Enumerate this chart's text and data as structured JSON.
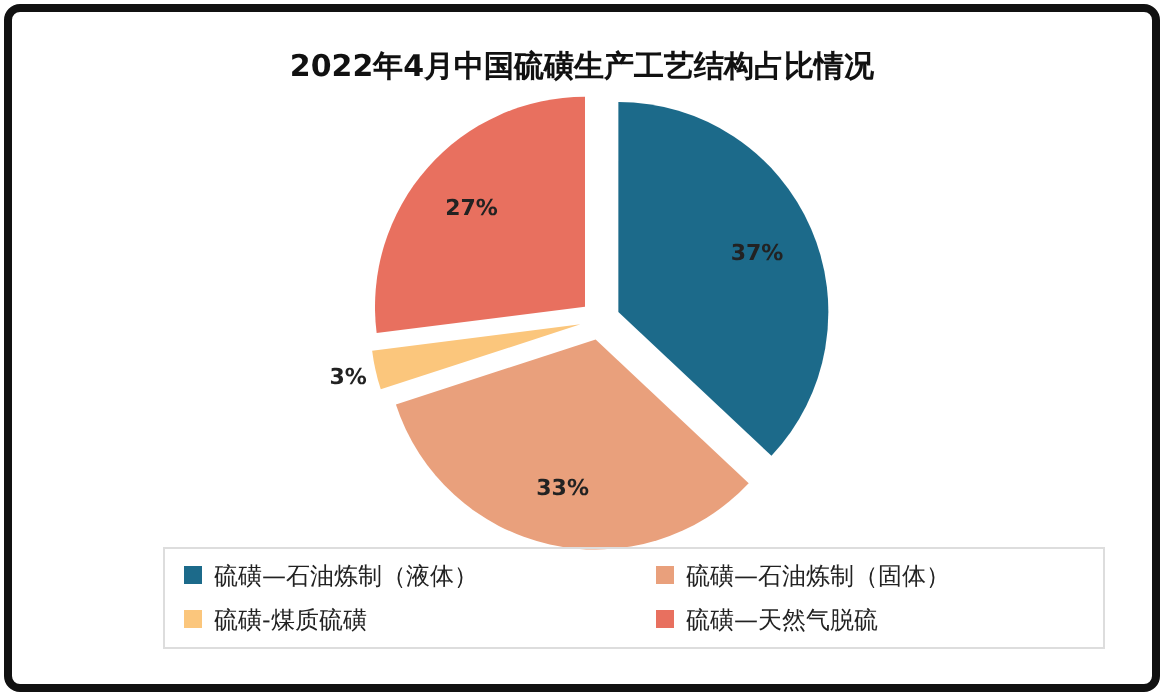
{
  "chart_data": {
    "type": "pie",
    "title": "2022年4月中国硫磺生产工艺结构占比情况",
    "categories": [
      "硫磺—石油炼制（液体）",
      "硫磺—石油炼制（固体）",
      "硫磺-煤质硫磺",
      "硫磺—天然气脱硫"
    ],
    "values": [
      37,
      33,
      3,
      27
    ],
    "value_labels": [
      "37%",
      "33%",
      "3%",
      "27%"
    ],
    "colors": [
      "#1c6a8a",
      "#e9a07c",
      "#fbc67c",
      "#e8705f"
    ],
    "legend": "bottom"
  }
}
